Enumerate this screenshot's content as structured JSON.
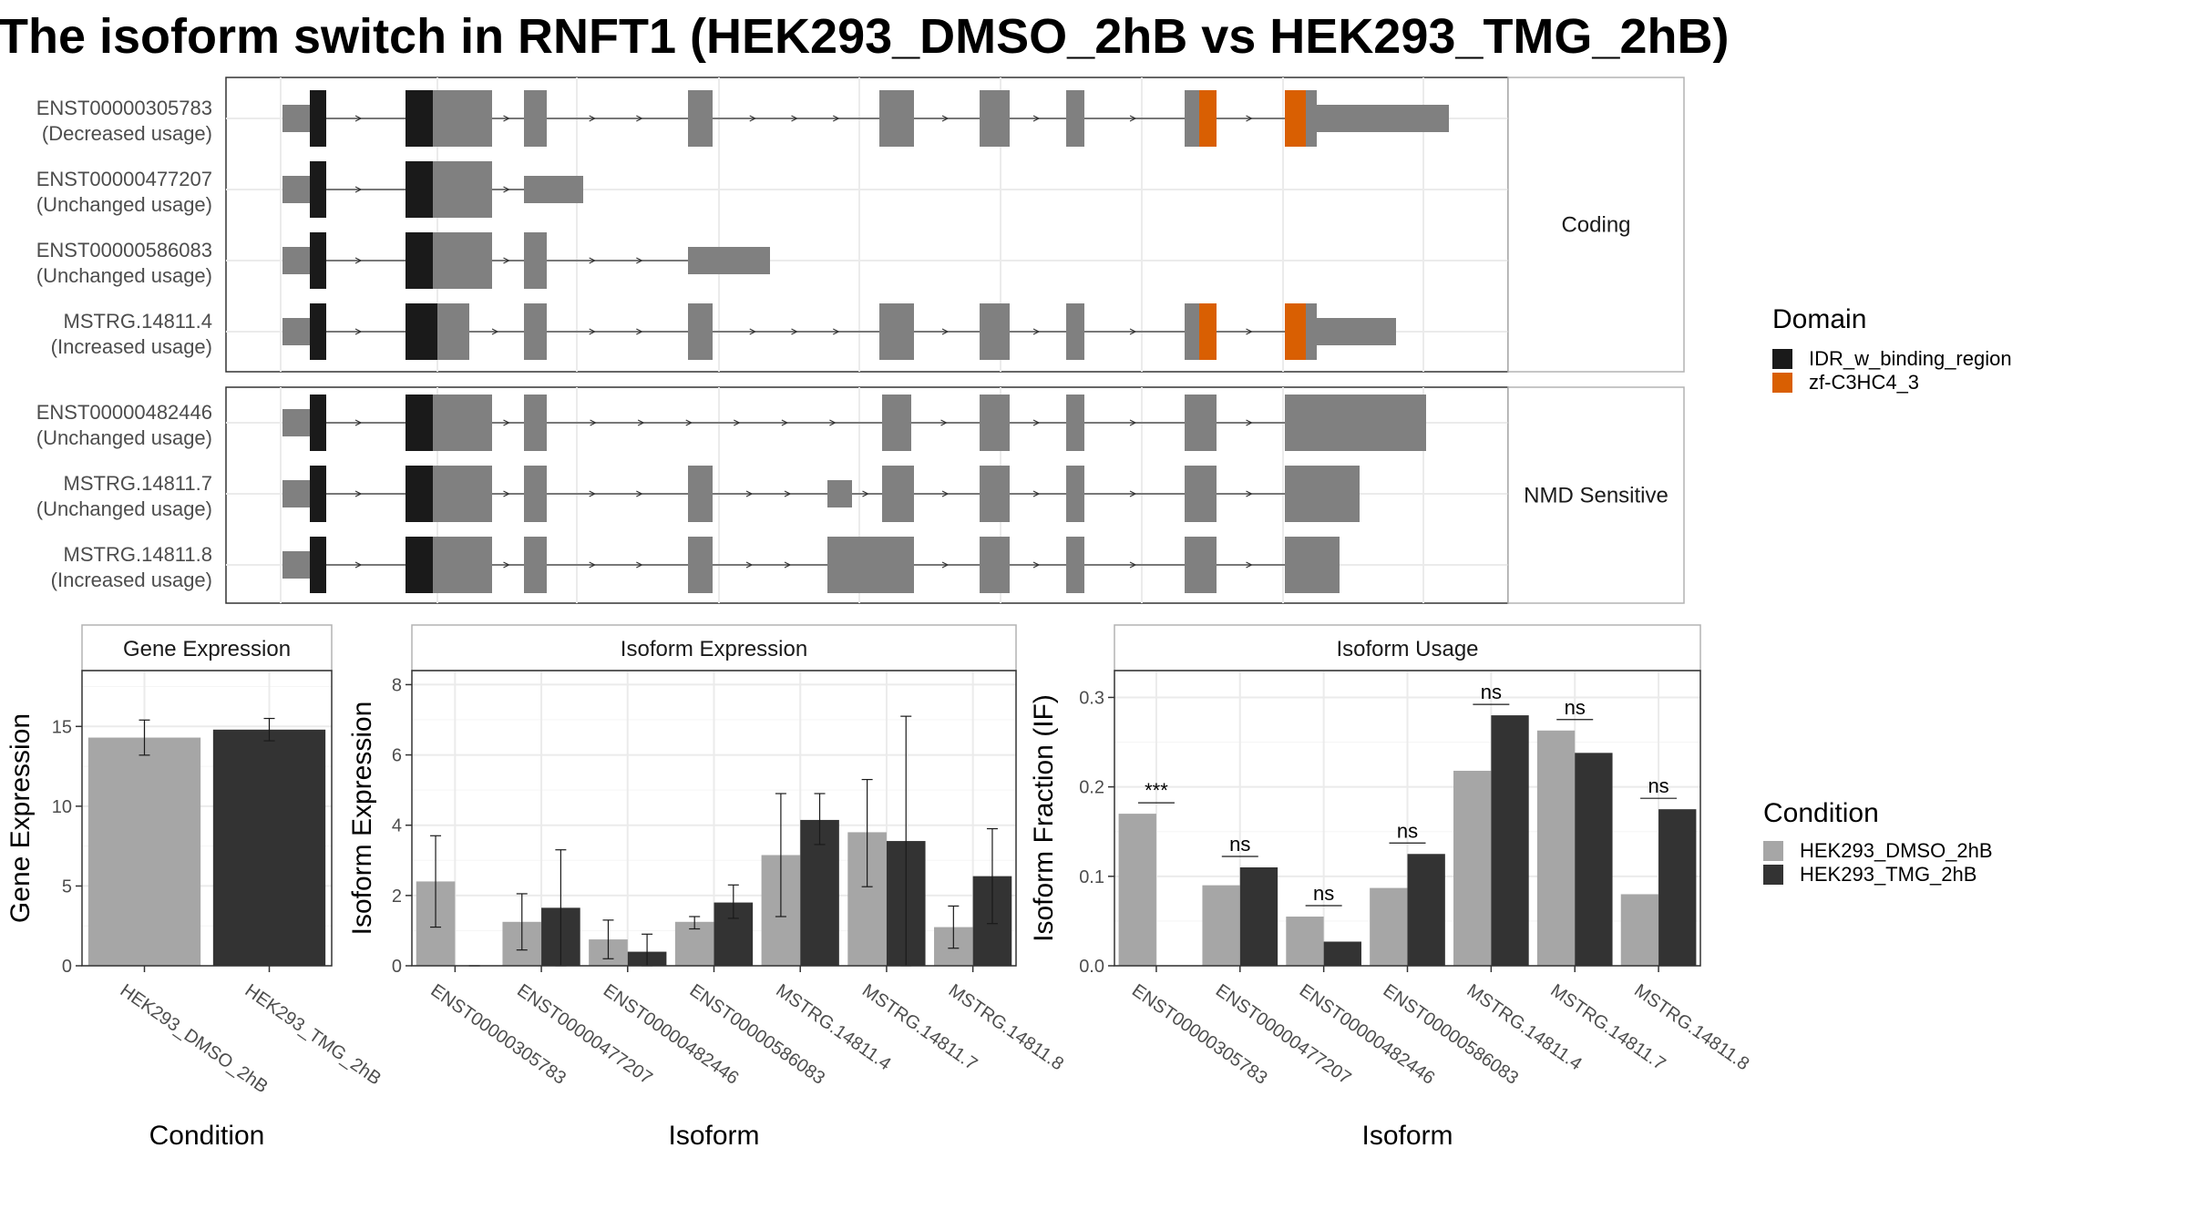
{
  "title": "The isoform switch in RNFT1 (HEK293_DMSO_2hB vs HEK293_TMG_2hB)",
  "colors": {
    "exon": "#808080",
    "IDR_w_binding_region": "#1a1a1a",
    "zf-C3HC4_3": "#d95f02",
    "cond1": "#a6a6a6",
    "cond2": "#333333",
    "intron": "#333333",
    "grid": "#ebebeb",
    "frame": "#333333"
  },
  "structure": {
    "groups": [
      {
        "facet": "Coding",
        "transcripts": [
          {
            "id": "ENST00000305783",
            "usage": "(Decreased usage)",
            "type": "full"
          },
          {
            "id": "ENST00000477207",
            "usage": "(Unchanged usage)",
            "type": "short1"
          },
          {
            "id": "ENST00000586083",
            "usage": "(Unchanged usage)",
            "type": "short2"
          },
          {
            "id": "MSTRG.14811.4",
            "usage": "(Increased usage)",
            "type": "full_b"
          }
        ]
      },
      {
        "facet": "NMD Sensitive",
        "transcripts": [
          {
            "id": "ENST00000482446",
            "usage": "(Unchanged usage)",
            "type": "nmd1"
          },
          {
            "id": "MSTRG.14811.7",
            "usage": "(Unchanged usage)",
            "type": "nmd2"
          },
          {
            "id": "MSTRG.14811.8",
            "usage": "(Increased usage)",
            "type": "nmd3"
          }
        ]
      }
    ],
    "domain_legend": {
      "title": "Domain",
      "items": [
        {
          "label": "IDR_w_binding_region",
          "color": "#1a1a1a"
        },
        {
          "label": "zf-C3HC4_3",
          "color": "#d95f02"
        }
      ]
    }
  },
  "condition_legend": {
    "title": "Condition",
    "items": [
      {
        "label": "HEK293_DMSO_2hB",
        "color": "#a6a6a6"
      },
      {
        "label": "HEK293_TMG_2hB",
        "color": "#333333"
      }
    ]
  },
  "chart_data": [
    {
      "type": "bar",
      "panel": "Gene Expression",
      "xlabel": "Condition",
      "ylabel": "Gene Expression",
      "ylim": [
        0,
        18.5
      ],
      "yticks": [
        0,
        5,
        10,
        15
      ],
      "categories": [
        "HEK293_DMSO_2hB",
        "HEK293_TMG_2hB"
      ],
      "values": [
        14.3,
        14.8
      ],
      "err_low": [
        13.2,
        14.1
      ],
      "err_high": [
        15.4,
        15.5
      ]
    },
    {
      "type": "bar",
      "panel": "Isoform Expression",
      "xlabel": "Isoform",
      "ylabel": "Isoform Expression",
      "ylim": [
        0,
        8.4
      ],
      "yticks": [
        0,
        2,
        4,
        6,
        8
      ],
      "categories": [
        "ENST00000305783",
        "ENST00000477207",
        "ENST00000482446",
        "ENST00000586083",
        "MSTRG.14811.4",
        "MSTRG.14811.7",
        "MSTRG.14811.8"
      ],
      "series": [
        {
          "name": "HEK293_DMSO_2hB",
          "values": [
            2.4,
            1.25,
            0.75,
            1.25,
            3.15,
            3.8,
            1.1
          ],
          "err_low": [
            1.1,
            0.45,
            0.2,
            1.05,
            1.4,
            2.25,
            0.5
          ],
          "err_high": [
            3.7,
            2.05,
            1.3,
            1.4,
            4.9,
            5.3,
            1.7
          ]
        },
        {
          "name": "HEK293_TMG_2hB",
          "values": [
            0.0,
            1.65,
            0.4,
            1.8,
            4.15,
            3.55,
            2.55
          ],
          "err_low": [
            0.0,
            0.0,
            0.0,
            1.35,
            3.45,
            0.0,
            1.2
          ],
          "err_high": [
            0.0,
            3.3,
            0.9,
            2.3,
            4.9,
            7.1,
            3.9
          ]
        }
      ]
    },
    {
      "type": "bar",
      "panel": "Isoform Usage",
      "xlabel": "Isoform",
      "ylabel": "Isoform Fraction (IF)",
      "ylim": [
        0,
        0.33
      ],
      "yticks": [
        0.0,
        0.1,
        0.2,
        0.3
      ],
      "categories": [
        "ENST00000305783",
        "ENST00000477207",
        "ENST00000482446",
        "ENST00000586083",
        "MSTRG.14811.4",
        "MSTRG.14811.7",
        "MSTRG.14811.8"
      ],
      "series": [
        {
          "name": "HEK293_DMSO_2hB",
          "values": [
            0.17,
            0.09,
            0.055,
            0.087,
            0.218,
            0.263,
            0.08
          ]
        },
        {
          "name": "HEK293_TMG_2hB",
          "values": [
            0.0,
            0.11,
            0.027,
            0.125,
            0.28,
            0.238,
            0.175
          ]
        }
      ],
      "significance": [
        "***",
        "ns",
        "ns",
        "ns",
        "ns",
        "ns",
        "ns"
      ]
    }
  ]
}
